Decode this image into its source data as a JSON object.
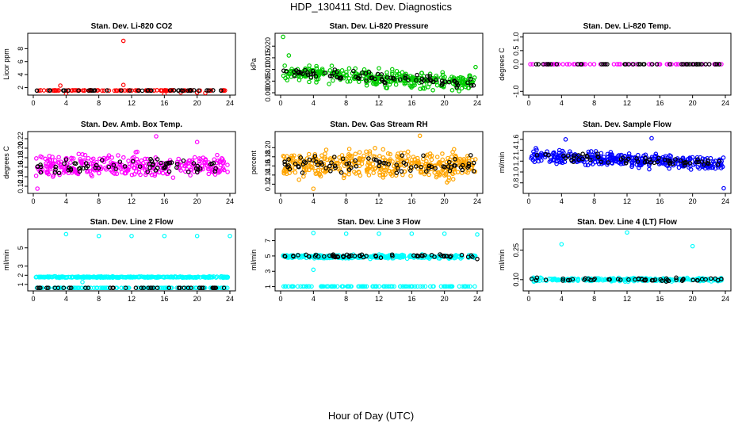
{
  "title": "HDP_130411  Std. Dev. Diagnostics",
  "xlabel": "Hour of Day (UTC)",
  "chart_data": [
    {
      "type": "scatter",
      "title": "Stan. Dev. Li-820 CO2",
      "ylabel": "Licor ppm",
      "xlim": [
        0,
        24
      ],
      "ylim": [
        1.2,
        10
      ],
      "xticks": [
        0,
        4,
        8,
        12,
        16,
        20,
        24
      ],
      "yticks": [
        2,
        4,
        6,
        8
      ],
      "yticklabels": [
        "2",
        "4",
        "6",
        "8"
      ],
      "series": [
        {
          "name": "primary",
          "color": "#ff0000",
          "base": 1.55,
          "spread": 0.05,
          "count": 100,
          "points": [
            [
              11,
              9.2
            ],
            [
              3.3,
              2.3
            ],
            [
              11,
              2.4
            ],
            [
              18,
              1.25
            ],
            [
              20,
              1.22
            ],
            [
              21,
              1.15
            ],
            [
              4,
              1.0
            ],
            [
              16,
              1.0
            ]
          ]
        },
        {
          "name": "secondary",
          "color": "#000000",
          "base": 1.55,
          "spread": 0.05,
          "count": 40,
          "points": []
        }
      ]
    },
    {
      "type": "scatter",
      "title": "Stan. Dev. Li-820 Pressure",
      "ylabel": "kPa",
      "xlim": [
        0,
        24
      ],
      "ylim": [
        0,
        0.0245
      ],
      "xticks": [
        0,
        4,
        8,
        12,
        16,
        20,
        24
      ],
      "yticks": [
        0,
        0.005,
        0.01,
        0.015,
        0.02
      ],
      "yticklabels": [
        "0.000",
        "0.005",
        "0.010",
        "0.015",
        "0.020"
      ],
      "series": [
        {
          "name": "primary",
          "color": "#00cc00",
          "base": 0.0055,
          "spread": 0.005,
          "count": 320,
          "trend": [
            0.009,
            0.004
          ],
          "points": [
            [
              0.3,
              0.024
            ],
            [
              23.8,
              0.011
            ],
            [
              1,
              0.016
            ]
          ]
        },
        {
          "name": "secondary",
          "color": "#000000",
          "base": 0.0055,
          "spread": 0.003,
          "count": 80,
          "trend": [
            0.009,
            0.004
          ],
          "points": []
        }
      ]
    },
    {
      "type": "scatter",
      "title": "Stan. Dev. Li-820 Temp.",
      "ylabel": "degrees C",
      "xlim": [
        0,
        24
      ],
      "ylim": [
        -1.05,
        1.05
      ],
      "xticks": [
        0,
        4,
        8,
        12,
        16,
        20,
        24
      ],
      "yticks": [
        -1,
        0,
        0.5,
        1
      ],
      "yticklabels": [
        "-1.0",
        "0.0",
        "0.5",
        "1.0"
      ],
      "series": [
        {
          "name": "primary",
          "color": "#ff00ff",
          "base": 0,
          "spread": 0,
          "count": 60,
          "points": [
            [
              0.2,
              0
            ]
          ]
        },
        {
          "name": "secondary",
          "color": "#000000",
          "base": 0,
          "spread": 0,
          "count": 48,
          "points": []
        }
      ]
    },
    {
      "type": "scatter",
      "title": "Stan. Dev. Amb. Box Temp.",
      "ylabel": "degrees C",
      "xlim": [
        0,
        24
      ],
      "ylim": [
        0.11,
        0.23
      ],
      "xticks": [
        0,
        4,
        8,
        12,
        16,
        20,
        24
      ],
      "yticks": [
        0.12,
        0.14,
        0.16,
        0.18,
        0.2,
        0.22
      ],
      "yticklabels": [
        "0.12",
        "0.14",
        "0.16",
        "0.18",
        "0.20",
        "0.22"
      ],
      "series": [
        {
          "name": "primary",
          "color": "#ff00ff",
          "base": 0.162,
          "spread": 0.035,
          "count": 320,
          "points": [
            [
              15,
              0.225
            ],
            [
              20,
              0.213
            ],
            [
              0.5,
              0.115
            ]
          ]
        },
        {
          "name": "secondary",
          "color": "#000000",
          "base": 0.162,
          "spread": 0.02,
          "count": 70,
          "points": []
        }
      ]
    },
    {
      "type": "scatter",
      "title": "Stan. Dev. Gas Stream RH",
      "ylabel": "percent",
      "xlim": [
        0,
        24
      ],
      "ylim": [
        0.105,
        0.23
      ],
      "xticks": [
        0,
        4,
        8,
        12,
        16,
        20,
        24
      ],
      "yticks": [
        0.12,
        0.14,
        0.16,
        0.18,
        0.2
      ],
      "yticklabels": [
        "0.12",
        "0.14",
        "0.16",
        "0.18",
        "0.20"
      ],
      "series": [
        {
          "name": "primary",
          "color": "#ffa500",
          "base": 0.163,
          "spread": 0.045,
          "count": 420,
          "points": [
            [
              17,
              0.226
            ],
            [
              4,
              0.11
            ]
          ]
        },
        {
          "name": "secondary",
          "color": "#000000",
          "base": 0.163,
          "spread": 0.025,
          "count": 80,
          "points": []
        }
      ]
    },
    {
      "type": "scatter",
      "title": "Stan. Dev. Sample Flow",
      "ylabel": "ml/min",
      "xlim": [
        0,
        24
      ],
      "ylim": [
        0.65,
        1.7
      ],
      "xticks": [
        0,
        4,
        8,
        12,
        16,
        20,
        24
      ],
      "yticks": [
        0.8,
        1.0,
        1.2,
        1.4,
        1.6
      ],
      "yticklabels": [
        "0.8",
        "1.0",
        "1.2",
        "1.4",
        "1.6"
      ],
      "series": [
        {
          "name": "primary",
          "color": "#0000ff",
          "base": 1.32,
          "spread": 0.18,
          "count": 360,
          "trend": [
            1.3,
            1.15
          ],
          "points": [
            [
              23.8,
              0.7
            ],
            [
              15,
              1.62
            ],
            [
              4.5,
              1.6
            ]
          ]
        },
        {
          "name": "secondary",
          "color": "#000000",
          "base": 1.3,
          "spread": 0.1,
          "count": 60,
          "trend": [
            1.3,
            1.15
          ],
          "points": []
        }
      ]
    },
    {
      "type": "scatter",
      "title": "Stan. Dev. Line 2 Flow",
      "ylabel": "ml/min",
      "xlim": [
        0,
        24
      ],
      "ylim": [
        0.55,
        6.8
      ],
      "xticks": [
        0,
        4,
        8,
        12,
        16,
        20,
        24
      ],
      "yticks": [
        1,
        2,
        3,
        5
      ],
      "yticklabels": [
        "1",
        "2",
        "3",
        "5"
      ],
      "series": [
        {
          "name": "primary",
          "color": "#00ffff",
          "base": 1.8,
          "spread": 0.1,
          "count": 300,
          "points": [
            [
              4,
              6.5
            ],
            [
              8,
              6.3
            ],
            [
              12,
              6.3
            ],
            [
              16,
              6.3
            ],
            [
              20,
              6.3
            ],
            [
              24,
              6.3
            ],
            [
              6,
              1.25
            ]
          ]
        },
        {
          "name": "secondary",
          "color": "#00ffff",
          "base": 0.62,
          "spread": 0,
          "count": 120,
          "points": []
        },
        {
          "name": "tertiary",
          "color": "#000000",
          "base": 0.62,
          "spread": 0,
          "count": 40,
          "points": []
        }
      ]
    },
    {
      "type": "scatter",
      "title": "Stan. Dev. Line 3 Flow",
      "ylabel": "ml/min",
      "xlim": [
        0,
        24
      ],
      "ylim": [
        0.75,
        8.2
      ],
      "xticks": [
        0,
        4,
        8,
        12,
        16,
        20,
        24
      ],
      "yticks": [
        1,
        3,
        5,
        7
      ],
      "yticklabels": [
        "1",
        "3",
        "5",
        "7"
      ],
      "series": [
        {
          "name": "primary",
          "color": "#00ffff",
          "base": 4.9,
          "spread": 0.35,
          "count": 300,
          "points": [
            [
              4,
              8
            ],
            [
              8,
              7.9
            ],
            [
              12,
              7.9
            ],
            [
              16,
              7.9
            ],
            [
              20,
              7.9
            ],
            [
              24,
              7.8
            ],
            [
              4,
              3.2
            ]
          ]
        },
        {
          "name": "secondary",
          "color": "#00ffff",
          "base": 1.02,
          "spread": 0,
          "count": 120,
          "points": []
        },
        {
          "name": "tertiary",
          "color": "#000000",
          "base": 5.0,
          "spread": 0.3,
          "count": 60,
          "points": [
            [
              24,
              4.6
            ]
          ]
        }
      ]
    },
    {
      "type": "scatter",
      "title": "Stan. Dev. Line 4 (LT) Flow",
      "ylabel": "ml/min",
      "xlim": [
        0,
        24
      ],
      "ylim": [
        0.055,
        0.345
      ],
      "xticks": [
        0,
        4,
        8,
        12,
        16,
        20,
        24
      ],
      "yticks": [
        0.1,
        0.25
      ],
      "yticklabels": [
        "0.10",
        "0.25"
      ],
      "series": [
        {
          "name": "primary",
          "color": "#00ffff",
          "base": 0.1,
          "spread": 0.012,
          "count": 260,
          "points": [
            [
              4,
              0.28
            ],
            [
              12,
              0.34
            ],
            [
              20,
              0.27
            ]
          ]
        },
        {
          "name": "secondary",
          "color": "#000000",
          "base": 0.1,
          "spread": 0.01,
          "count": 50,
          "points": [
            [
              1,
              0.11
            ],
            [
              18,
              0.11
            ]
          ]
        }
      ]
    }
  ]
}
